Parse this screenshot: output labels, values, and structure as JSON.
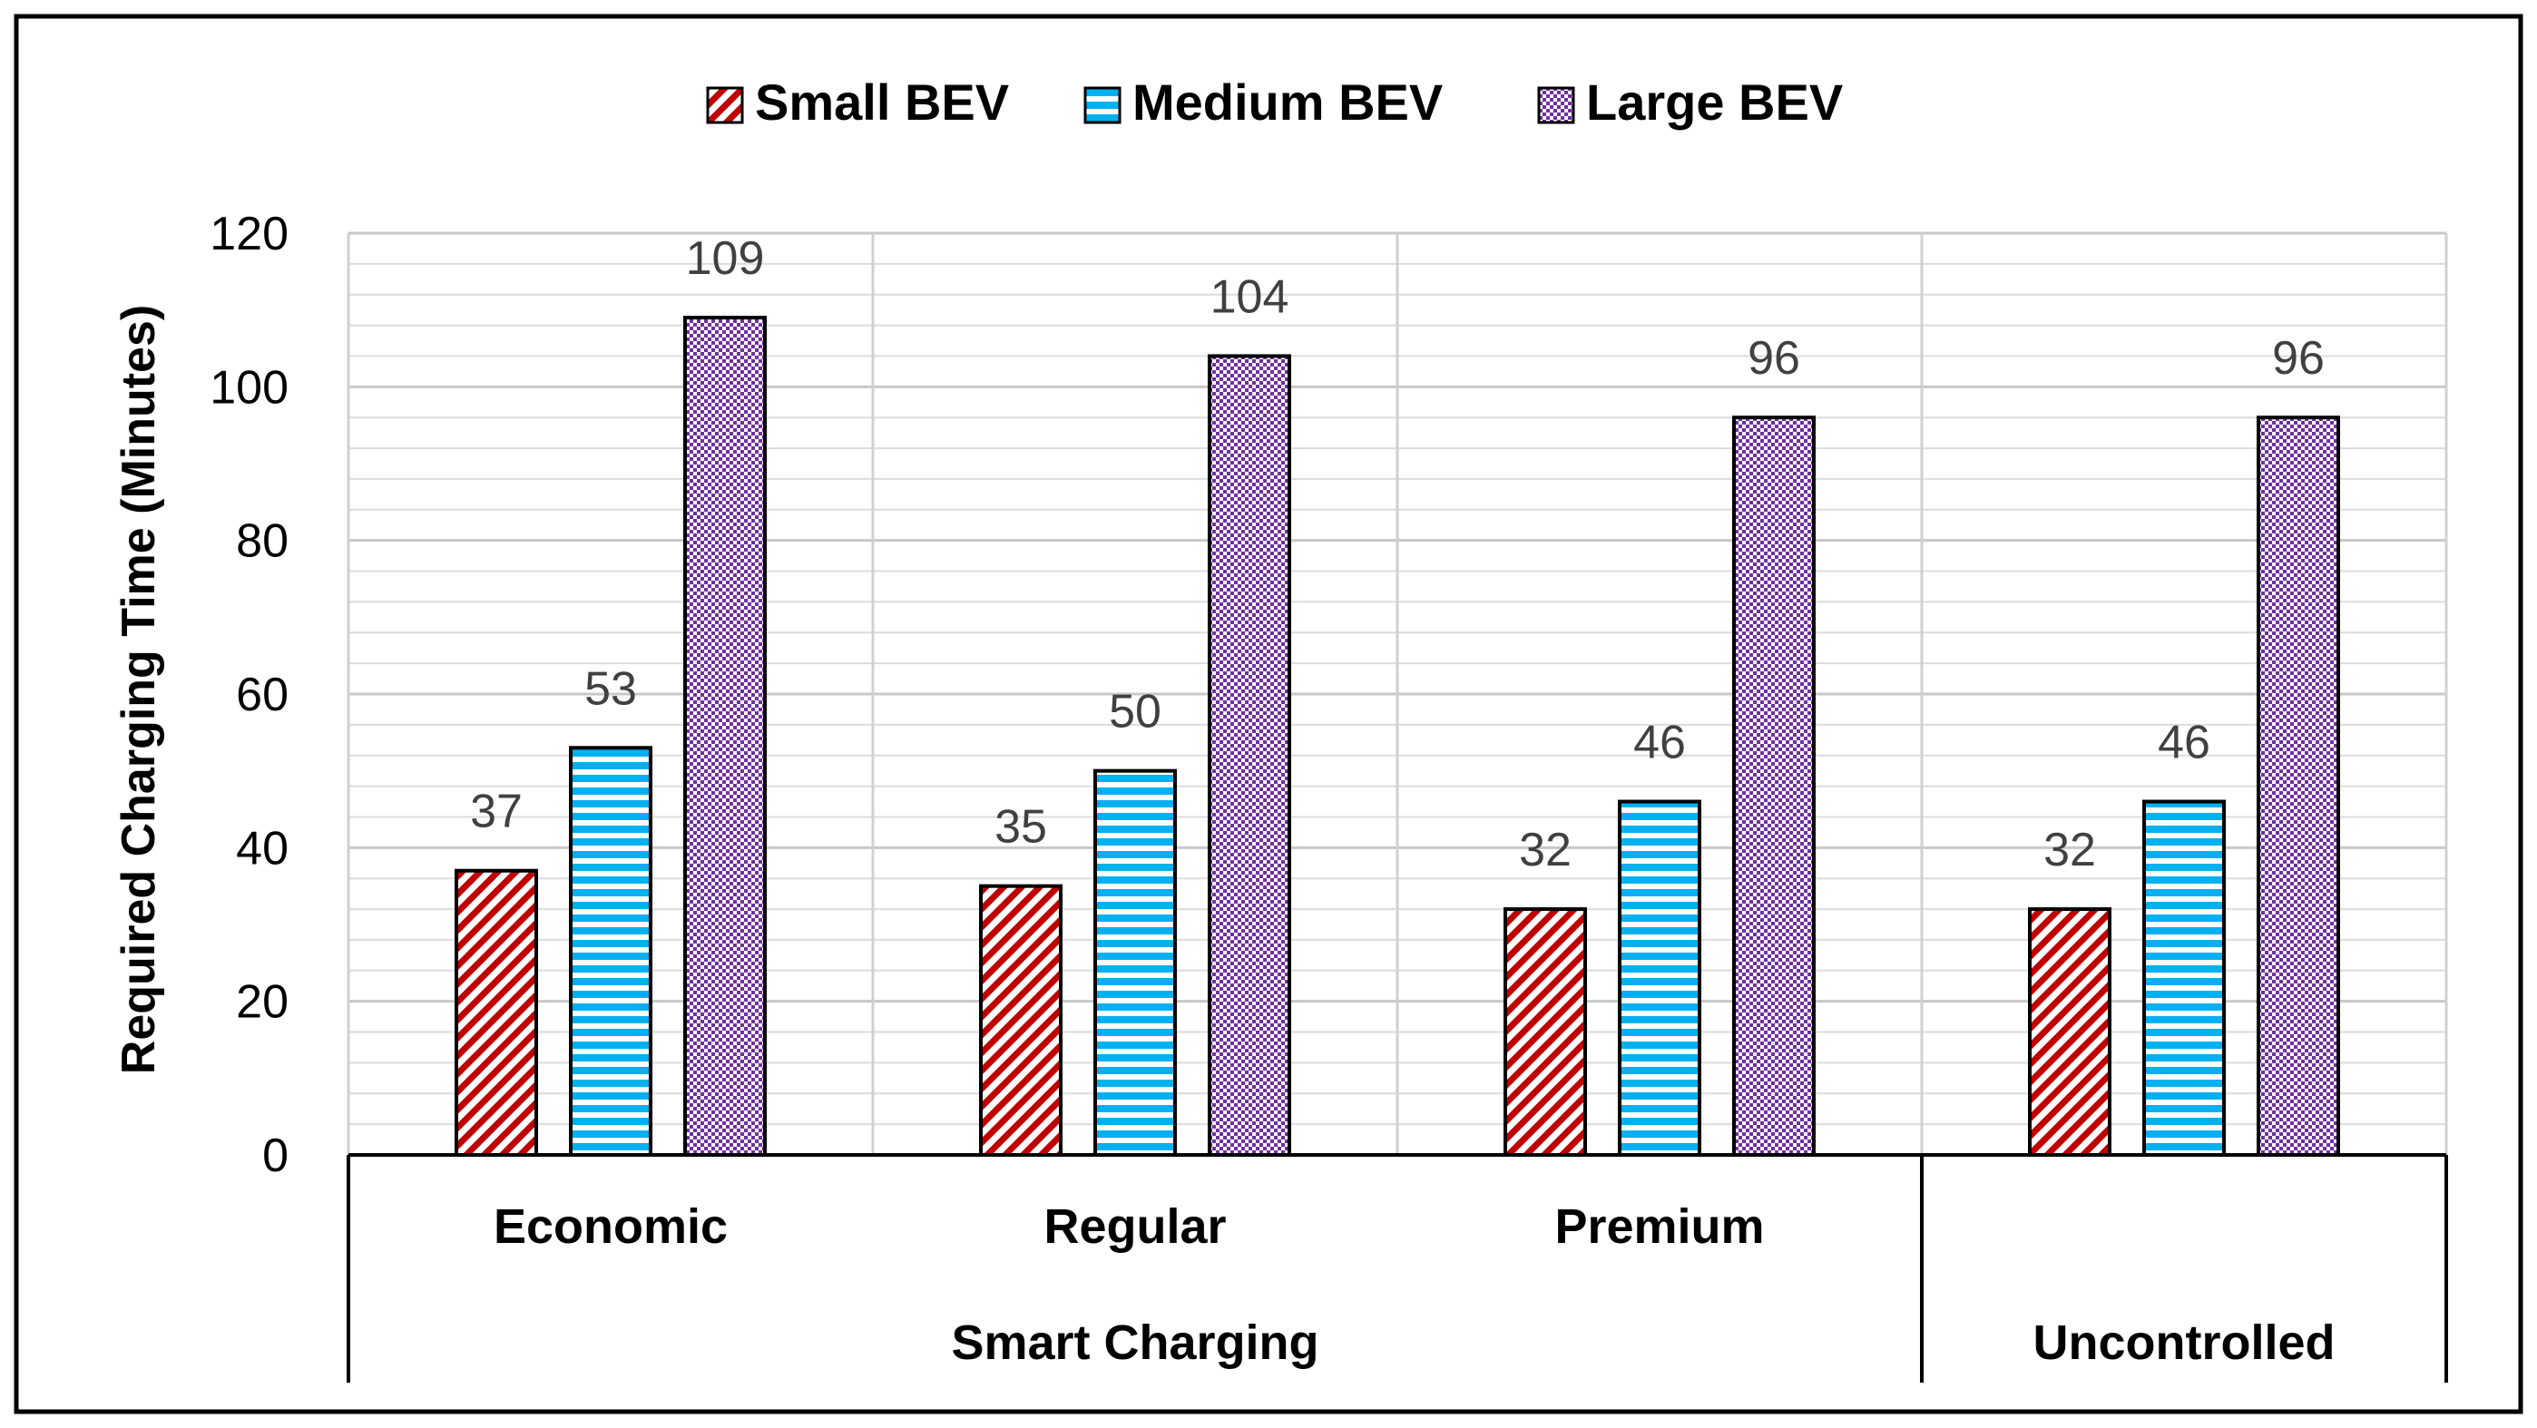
{
  "chart_data": {
    "type": "bar",
    "title": "",
    "ylabel": "Required Charging Time (Minutes)",
    "xlabel": "",
    "ylim": [
      0,
      120
    ],
    "y_ticks": [
      0,
      20,
      40,
      60,
      80,
      100,
      120
    ],
    "y_minor_step": 4,
    "grid": true,
    "legend_position": "top-center",
    "categories": [
      "Economic",
      "Regular",
      "Premium",
      "Uncontrolled"
    ],
    "groups": [
      {
        "label": "Smart Charging",
        "categories": [
          "Economic",
          "Regular",
          "Premium"
        ]
      },
      {
        "label": "Uncontrolled",
        "categories": [
          "Uncontrolled"
        ]
      }
    ],
    "series": [
      {
        "name": "Small BEV",
        "values": [
          37,
          35,
          32,
          32
        ],
        "color": "#c00000",
        "pattern": "diagonal-stripes"
      },
      {
        "name": "Medium BEV",
        "values": [
          53,
          50,
          46,
          46
        ],
        "color": "#00b0f0",
        "pattern": "horizontal-stripes"
      },
      {
        "name": "Large BEV",
        "values": [
          109,
          104,
          96,
          96
        ],
        "color": "#7030a0",
        "pattern": "checker-dots"
      }
    ]
  }
}
